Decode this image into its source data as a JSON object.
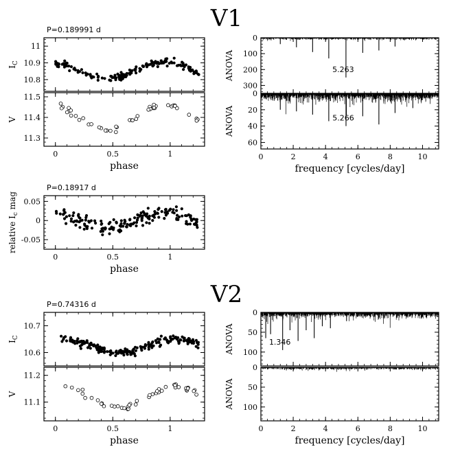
{
  "titles": {
    "v1": "V1",
    "v2": "V2"
  },
  "chart_data": [
    {
      "id": "v1_ic",
      "type": "scatter",
      "xlim": [
        -0.1,
        1.3
      ],
      "ylim": [
        11.05,
        10.73
      ],
      "ylabel": "I",
      "ylabel_sub": "C",
      "period_label": "P=0.189991 d",
      "yticks": [
        10.8,
        10.9,
        11
      ],
      "yticklabels": [
        "10.8",
        "10.9",
        "11"
      ],
      "xticks": [
        0,
        0.5,
        1
      ],
      "xticklabels": [
        "0",
        "0.5",
        "1"
      ],
      "show_xticklabels": false,
      "marker": "filled",
      "curve": {
        "mean": 10.855,
        "amp": 0.05,
        "phase0": 0.45,
        "noise": 0.02,
        "n": 170,
        "x0": 0.0,
        "x1": 1.25
      }
    },
    {
      "id": "v1_v",
      "type": "scatter",
      "xlim": [
        -0.1,
        1.3
      ],
      "ylim": [
        11.52,
        11.26
      ],
      "ylabel": "V",
      "xlabel": "phase",
      "yticks": [
        11.3,
        11.4,
        11.5
      ],
      "yticklabels": [
        "11.3",
        "11.4",
        "11.5"
      ],
      "xticks": [
        0,
        0.5,
        1
      ],
      "xticklabels": [
        "0",
        "0.5",
        "1"
      ],
      "show_xticklabels": true,
      "marker": "open",
      "curve": {
        "mean": 11.4,
        "amp": 0.065,
        "phase0": 0.45,
        "noise": 0.015,
        "n": 44,
        "x0": 0.0,
        "x1": 1.25
      }
    },
    {
      "id": "v1_rel",
      "type": "scatter",
      "xlim": [
        -0.1,
        1.3
      ],
      "ylim": [
        0.065,
        -0.075
      ],
      "ylabel": "relative I",
      "ylabel_sub": "c",
      "ylabel_tail": " mag",
      "xlabel": "phase",
      "period_label": "P=0.18917 d",
      "yticks": [
        -0.05,
        0,
        0.05
      ],
      "yticklabels": [
        "-0.05",
        "0",
        "0.05"
      ],
      "xticks": [
        0,
        0.5,
        1
      ],
      "xticklabels": [
        "0",
        "0.5",
        "1"
      ],
      "show_xticklabels": true,
      "marker": "filled",
      "curve": {
        "mean": 0.0,
        "amp": 0.02,
        "phase0": 0.45,
        "noise": 0.018,
        "n": 175,
        "x0": 0.0,
        "x1": 1.25
      }
    },
    {
      "id": "v1_anova_i",
      "type": "bar",
      "xlim": [
        0,
        11
      ],
      "ylim": [
        0,
        350
      ],
      "ylabel": "ANOVA",
      "yticks": [
        0,
        100,
        200,
        300
      ],
      "yticklabels": [
        "0",
        "100",
        "200",
        "300"
      ],
      "xticks": [
        0,
        2,
        4,
        6,
        8,
        10
      ],
      "xticklabels": [
        "0",
        "2",
        "4",
        "6",
        "8",
        "10"
      ],
      "show_xticklabels": false,
      "peak_label": "5.263",
      "peak_x": 5.263,
      "peaks": [
        [
          5.263,
          250
        ],
        [
          4.2,
          130
        ],
        [
          3.2,
          90
        ],
        [
          6.3,
          95
        ],
        [
          7.3,
          80
        ],
        [
          2.2,
          60
        ],
        [
          8.3,
          55
        ],
        [
          1.2,
          40
        ]
      ],
      "noise": 14,
      "n": 1100
    },
    {
      "id": "v1_anova_v",
      "type": "bar",
      "xlim": [
        0,
        11
      ],
      "ylim": [
        0,
        68
      ],
      "ylabel": "ANOVA",
      "xlabel": "frequency [cycles/day]",
      "yticks": [
        0,
        20,
        40,
        60
      ],
      "yticklabels": [
        "0",
        "20",
        "40",
        "60"
      ],
      "xticks": [
        0,
        2,
        4,
        6,
        8,
        10
      ],
      "xticklabels": [
        "0",
        "2",
        "4",
        "6",
        "8",
        "10"
      ],
      "show_xticklabels": true,
      "peak_label": "5.266",
      "peak_x": 5.266,
      "peaks": [
        [
          5.266,
          40
        ],
        [
          4.2,
          34
        ],
        [
          7.3,
          38
        ],
        [
          6.3,
          28
        ],
        [
          3.2,
          26
        ],
        [
          2.2,
          22
        ],
        [
          8.3,
          24
        ],
        [
          1.2,
          20
        ],
        [
          9.4,
          18
        ]
      ],
      "noise": 12,
      "n": 1100
    },
    {
      "id": "v2_ic",
      "type": "scatter",
      "xlim": [
        -0.1,
        1.3
      ],
      "ylim": [
        10.75,
        10.55
      ],
      "ylabel": "I",
      "ylabel_sub": "C",
      "period_label": "P=0.74316 d",
      "yticks": [
        10.6,
        10.7
      ],
      "yticklabels": [
        "10.6",
        "10.7"
      ],
      "xticks": [
        0,
        0.5,
        1
      ],
      "xticklabels": [
        "0",
        "0.5",
        "1"
      ],
      "show_xticklabels": false,
      "marker": "filled",
      "curve": {
        "mean": 10.625,
        "amp": 0.025,
        "phase0": 0.55,
        "noise": 0.015,
        "n": 200,
        "x0": 0.05,
        "x1": 1.25
      }
    },
    {
      "id": "v2_v",
      "type": "scatter",
      "xlim": [
        -0.1,
        1.3
      ],
      "ylim": [
        11.23,
        11.03
      ],
      "ylabel": "V",
      "xlabel": "phase",
      "yticks": [
        11.1,
        11.2
      ],
      "yticklabels": [
        "11.1",
        "11.2"
      ],
      "xticks": [
        0,
        0.5,
        1
      ],
      "xticklabels": [
        "0",
        "0.5",
        "1"
      ],
      "show_xticklabels": true,
      "marker": "open",
      "curve": {
        "mean": 11.12,
        "amp": 0.04,
        "phase0": 0.55,
        "noise": 0.012,
        "n": 45,
        "x0": 0.08,
        "x1": 1.23
      }
    },
    {
      "id": "v2_anova_i",
      "type": "bar",
      "xlim": [
        0,
        11
      ],
      "ylim": [
        0,
        135
      ],
      "ylabel": "ANOVA",
      "yticks": [
        0,
        50,
        100
      ],
      "yticklabels": [
        "0",
        "50",
        "100"
      ],
      "xticks": [
        0,
        2,
        4,
        6,
        8,
        10
      ],
      "xticklabels": [
        "0",
        "2",
        "4",
        "6",
        "8",
        "10"
      ],
      "show_xticklabels": false,
      "peak_label": "1.346",
      "peak_x": 1.346,
      "peaks": [
        [
          1.346,
          95
        ],
        [
          0.3,
          65
        ],
        [
          0.6,
          55
        ],
        [
          2.3,
          72
        ],
        [
          3.3,
          65
        ],
        [
          1.8,
          45
        ],
        [
          2.8,
          45
        ],
        [
          4.3,
          40
        ],
        [
          3.8,
          35
        ],
        [
          5.3,
          22
        ]
      ],
      "noise": 18,
      "n": 1100
    },
    {
      "id": "v2_anova_v",
      "type": "bar",
      "xlim": [
        0,
        11
      ],
      "ylim": [
        0,
        135
      ],
      "ylabel": "ANOVA",
      "xlabel": "frequency [cycles/day]",
      "yticks": [
        0,
        50,
        100
      ],
      "yticklabels": [
        "0",
        "50",
        "100"
      ],
      "xticks": [
        0,
        2,
        4,
        6,
        8,
        10
      ],
      "xticklabels": [
        "0",
        "2",
        "4",
        "6",
        "8",
        "10"
      ],
      "show_xticklabels": true,
      "peaks": [],
      "noise": 7,
      "n": 1100
    }
  ]
}
